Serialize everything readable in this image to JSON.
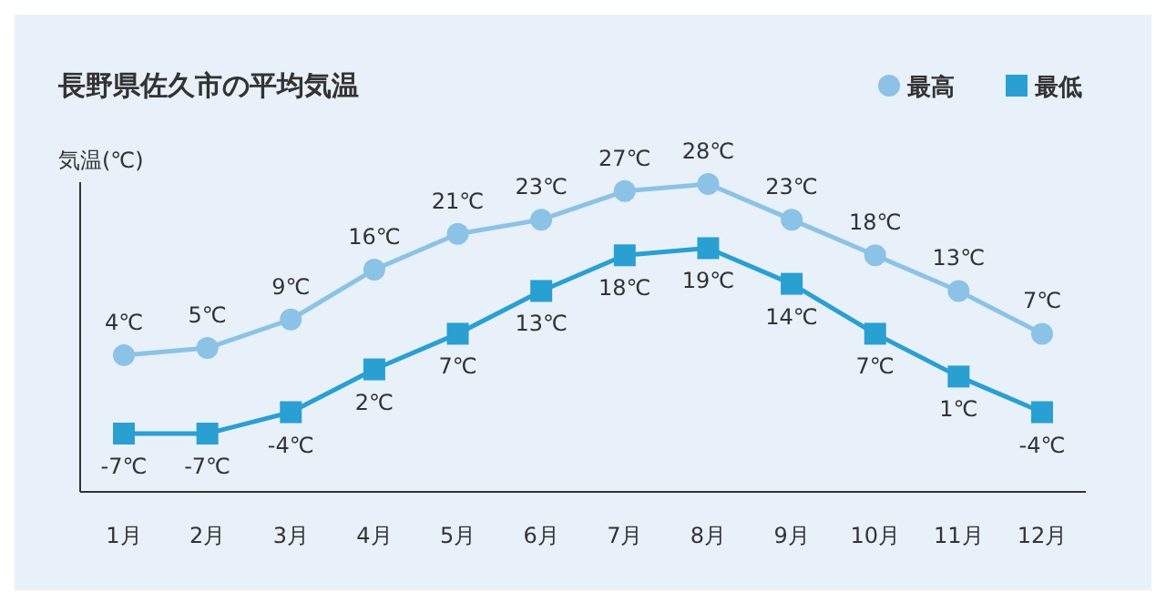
{
  "chart_data": {
    "type": "line",
    "title": "長野県佐久市の平均気温",
    "ylabel": "気温(℃)",
    "categories": [
      "1月",
      "2月",
      "3月",
      "4月",
      "5月",
      "6月",
      "7月",
      "8月",
      "9月",
      "10月",
      "11月",
      "12月"
    ],
    "series": [
      {
        "name": "最高",
        "color": "#8cc2e6",
        "marker": "circle",
        "values": [
          4,
          5,
          9,
          16,
          21,
          23,
          27,
          28,
          23,
          18,
          13,
          7
        ],
        "value_labels": [
          "4℃",
          "5℃",
          "9℃",
          "16℃",
          "21℃",
          "23℃",
          "27℃",
          "28℃",
          "23℃",
          "18℃",
          "13℃",
          "7℃"
        ]
      },
      {
        "name": "最低",
        "color": "#2a9fd2",
        "marker": "square",
        "values": [
          -7,
          -7,
          -4,
          2,
          7,
          13,
          18,
          19,
          14,
          7,
          1,
          -4
        ],
        "value_labels": [
          "-7℃",
          "-7℃",
          "-4℃",
          "2℃",
          "7℃",
          "13℃",
          "18℃",
          "19℃",
          "14℃",
          "7℃",
          "1℃",
          "-4℃"
        ]
      }
    ],
    "legend": "top right",
    "line_style": "solid"
  }
}
